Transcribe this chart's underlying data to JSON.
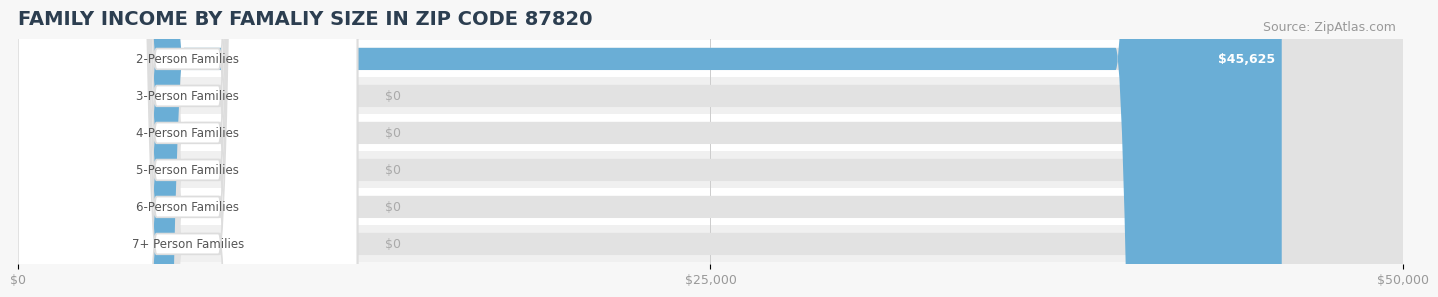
{
  "title": "FAMILY INCOME BY FAMALIY SIZE IN ZIP CODE 87820",
  "source": "Source: ZipAtlas.com",
  "categories": [
    "2-Person Families",
    "3-Person Families",
    "4-Person Families",
    "5-Person Families",
    "6-Person Families",
    "7+ Person Families"
  ],
  "values": [
    45625,
    0,
    0,
    0,
    0,
    0
  ],
  "bar_colors": [
    "#6aaed6",
    "#c4a8d0",
    "#5dc4b4",
    "#aaaadc",
    "#f080a0",
    "#f5c890"
  ],
  "xlim": [
    0,
    50000
  ],
  "xticks": [
    0,
    25000,
    50000
  ],
  "xtick_labels": [
    "$0",
    "$25,000",
    "$50,000"
  ],
  "value_labels": [
    "$45,625",
    "$0",
    "$0",
    "$0",
    "$0",
    "$0"
  ],
  "bg_color": "#f7f7f7",
  "row_colors": [
    "#ffffff",
    "#f0f0f0"
  ],
  "bar_bg_color": "#e2e2e2",
  "title_fontsize": 14,
  "source_fontsize": 9,
  "label_text_color": "#555555",
  "value_color_on_bar": "#ffffff",
  "value_color_off_bar": "#aaaaaa"
}
